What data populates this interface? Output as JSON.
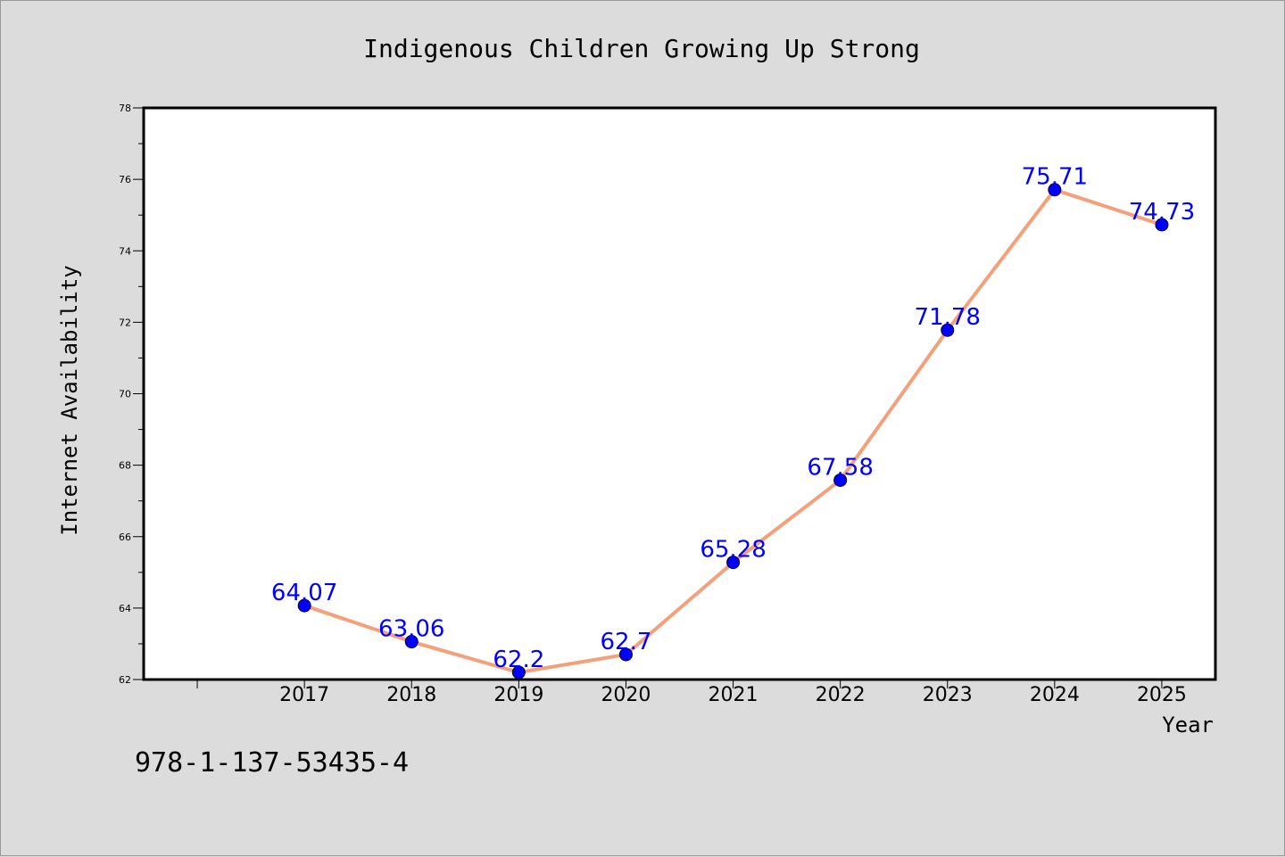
{
  "chart_data": {
    "type": "line",
    "title": "Indigenous Children Growing Up Strong",
    "xlabel": "Year",
    "ylabel": "Internet Availability",
    "x": [
      2017,
      2018,
      2019,
      2020,
      2021,
      2022,
      2023,
      2024,
      2025
    ],
    "series": [
      {
        "values": [
          64.07,
          63.06,
          62.2,
          62.7,
          65.28,
          67.58,
          71.78,
          75.71,
          74.73
        ],
        "labels": [
          "64.07",
          "63.06",
          "62.2",
          "62.7",
          "65.28",
          "67.58",
          "71.78",
          "75.71",
          "74.73"
        ],
        "line_color": "#f4a07a",
        "marker_color": "#0000ff"
      }
    ],
    "ylim": [
      62,
      78
    ],
    "yticks": [
      62,
      64,
      66,
      68,
      70,
      72,
      74,
      76,
      78
    ],
    "xlim": [
      2015.5,
      2025.5
    ],
    "grid": false,
    "legend": "none"
  },
  "footer": {
    "isbn": "978-1-137-53435-4"
  },
  "colors": {
    "background": "#dcdcdc",
    "plot_background": "#ffffff",
    "line": "#f4a07a",
    "marker": "#0000ff",
    "data_label": "#0000ff"
  }
}
